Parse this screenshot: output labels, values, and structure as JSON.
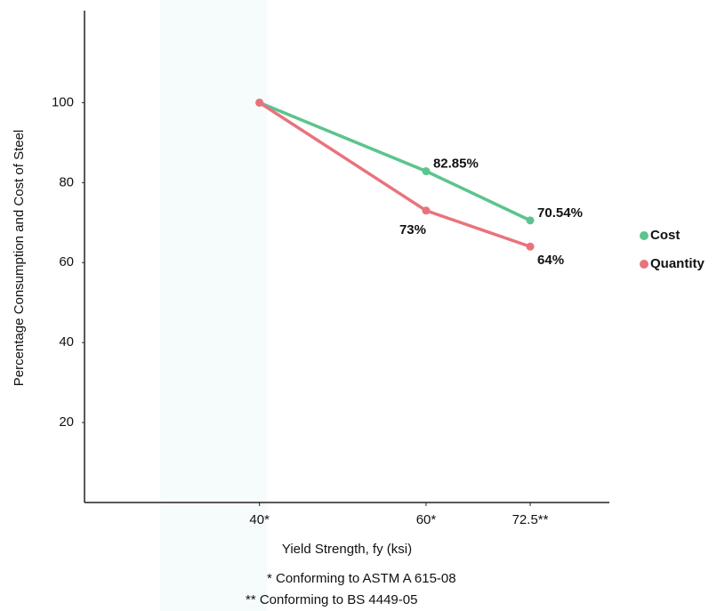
{
  "chart_data": {
    "type": "line",
    "x_label": "Yield Strength, fy (ksi)",
    "y_label": "Percentage Consumption and Cost of Steel",
    "x": [
      40,
      60,
      72.5
    ],
    "series": [
      {
        "name": "Cost",
        "color": "#5cc48e",
        "values": [
          100,
          82.85,
          70.54
        ],
        "value_labels": [
          null,
          "82.85%",
          "70.54%"
        ]
      },
      {
        "name": "Quantity",
        "color": "#e8737c",
        "values": [
          100,
          73,
          64
        ],
        "value_labels": [
          null,
          "73%",
          "64%"
        ]
      }
    ],
    "xlim": [
      19,
      82
    ],
    "xticks": [
      {
        "value": 40,
        "label": "40*"
      },
      {
        "value": 60,
        "label": "60*"
      },
      {
        "value": 72.5,
        "label": "72.5**"
      }
    ],
    "ylim": [
      0,
      123
    ],
    "yticks": [
      20,
      40,
      60,
      80,
      100
    ],
    "legend": "right",
    "notes": [
      "* Conforming to ASTM A 615-08",
      "** Conforming to BS 4449-05"
    ]
  }
}
